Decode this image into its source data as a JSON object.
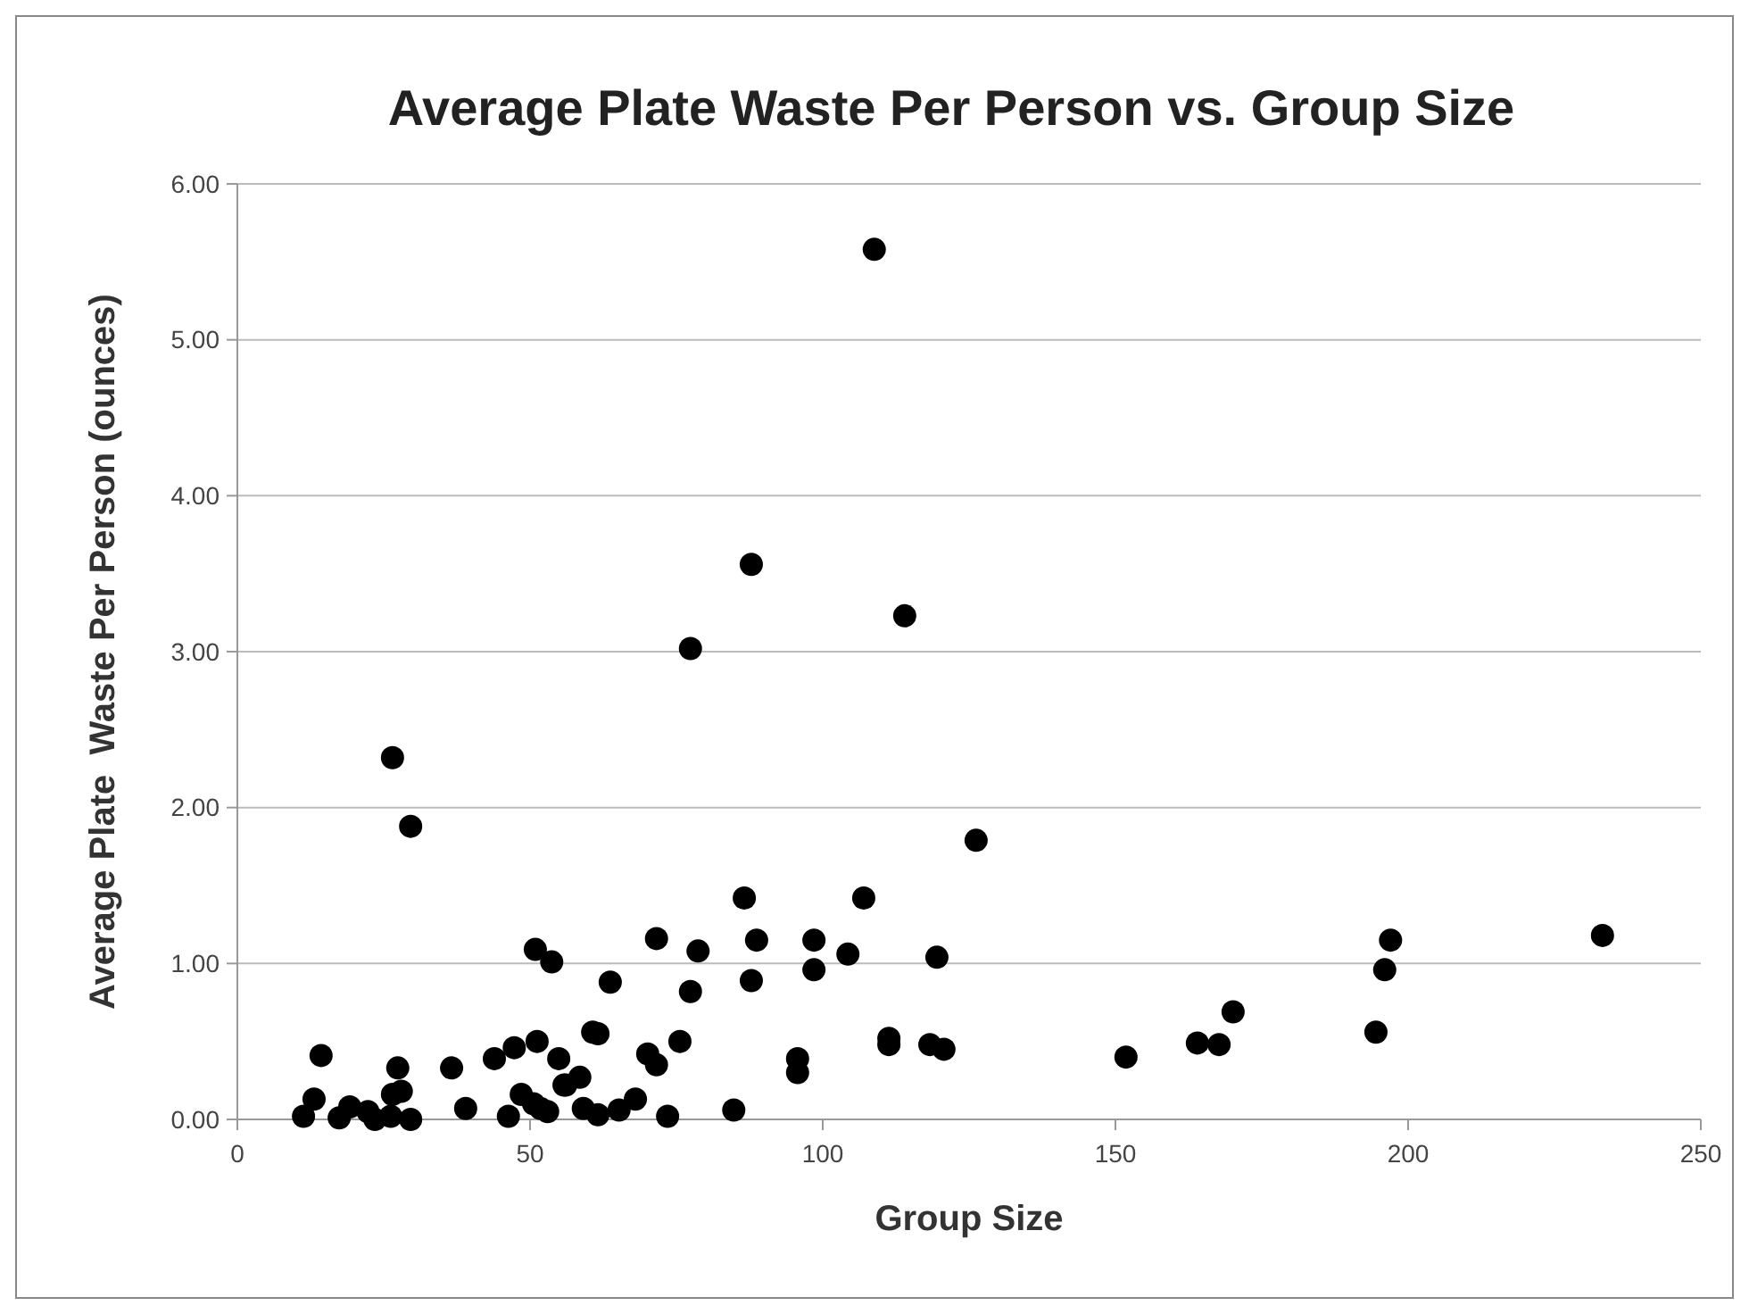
{
  "chart_data": {
    "type": "scatter",
    "title": "Average Plate Waste Per Person vs. Group Size",
    "xlabel": "Group Size",
    "ylabel": "Average Plate  Waste Per Person (ounces)",
    "xlim": [
      0,
      250
    ],
    "xticks": [
      0,
      50,
      100,
      150,
      200,
      250
    ],
    "ylim": [
      0,
      6
    ],
    "yticks": [
      {
        "value": 0,
        "label": "0.00"
      },
      {
        "value": 1,
        "label": "1.00"
      },
      {
        "value": 2,
        "label": "2.00"
      },
      {
        "value": 3,
        "label": "3.00"
      },
      {
        "value": 4,
        "label": "4.00"
      },
      {
        "value": 5,
        "label": "5.00"
      },
      {
        "value": 6,
        "label": "6.00"
      }
    ],
    "grid": "y",
    "marker": "circle",
    "series": [
      {
        "color": "#000000",
        "x": [
          26.5,
          29.6,
          14.3,
          13.1,
          11.3,
          17.4,
          19.2,
          22.3,
          23.5,
          26.2,
          26.5,
          28.0,
          27.4,
          29.6,
          36.6,
          39.0,
          43.9,
          47.3,
          51.2,
          54.9,
          46.3,
          48.5,
          50.6,
          53.0,
          55.8,
          50.9,
          53.7,
          63.7,
          71.6,
          78.7,
          77.4,
          86.6,
          88.7,
          87.8,
          98.5,
          98.5,
          104.3,
          107.0,
          119.5,
          126.2,
          60.7,
          61.6,
          56.1,
          58.5,
          70.1,
          71.6,
          75.6,
          51.8,
          59.1,
          61.6,
          65.2,
          68.0,
          73.5,
          84.8,
          95.7,
          95.7,
          111.3,
          111.3,
          118.3,
          120.7,
          151.8,
          164.0,
          167.7,
          170.1,
          194.5,
          196.0,
          197.0,
          233.2,
          108.8,
          87.8,
          77.4,
          114.0
        ],
        "values": [
          2.32,
          1.88,
          0.41,
          0.13,
          0.02,
          0.01,
          0.08,
          0.05,
          0.0,
          0.02,
          0.16,
          0.18,
          0.33,
          0.0,
          0.33,
          0.07,
          0.39,
          0.46,
          0.5,
          0.39,
          0.02,
          0.16,
          0.1,
          0.05,
          0.22,
          1.09,
          1.01,
          0.88,
          1.16,
          1.08,
          0.82,
          1.42,
          1.15,
          0.89,
          1.15,
          0.96,
          1.06,
          1.42,
          1.04,
          1.79,
          0.56,
          0.55,
          0.22,
          0.27,
          0.42,
          0.35,
          0.5,
          0.07,
          0.07,
          0.03,
          0.06,
          0.13,
          0.02,
          0.06,
          0.39,
          0.3,
          0.52,
          0.48,
          0.48,
          0.45,
          0.4,
          0.49,
          0.48,
          0.69,
          0.56,
          0.96,
          1.15,
          1.18,
          5.58,
          3.56,
          3.02,
          3.23
        ]
      }
    ]
  }
}
